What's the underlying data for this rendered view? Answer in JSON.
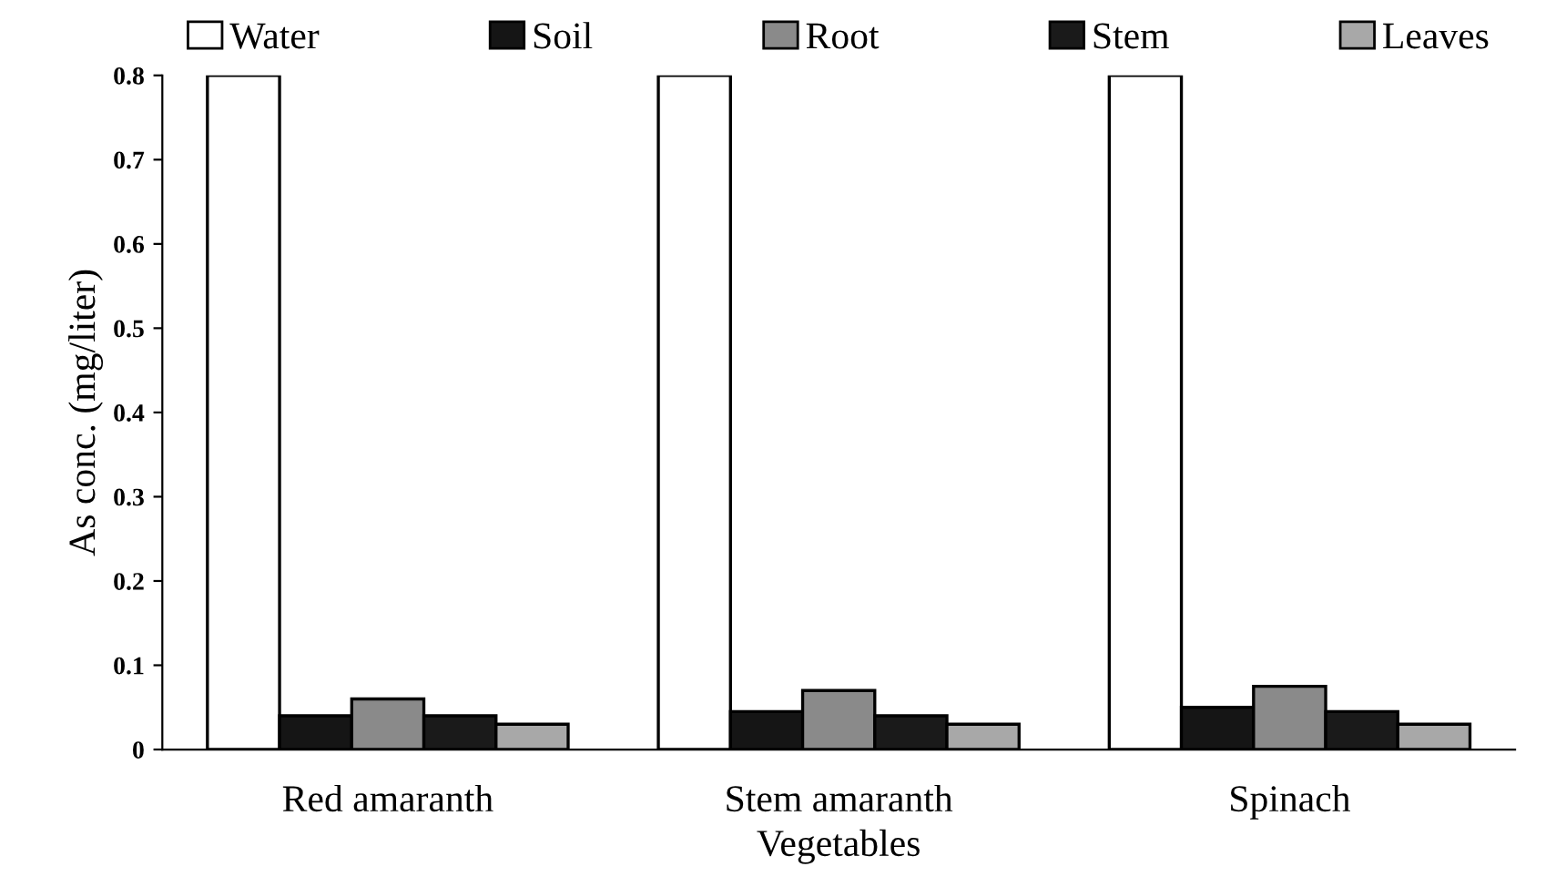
{
  "chart_data": {
    "type": "bar",
    "xlabel": "Vegetables",
    "ylabel": "As conc. (mg/liter)",
    "categories": [
      "Red amaranth",
      "Stem amaranth",
      "Spinach"
    ],
    "series": [
      {
        "name": "Water",
        "color": "#ffffff",
        "values": [
          0.8,
          0.8,
          0.8
        ]
      },
      {
        "name": "Soil",
        "color": "#151515",
        "values": [
          0.04,
          0.045,
          0.05
        ]
      },
      {
        "name": "Root",
        "color": "#8a8a8a",
        "values": [
          0.06,
          0.07,
          0.075
        ]
      },
      {
        "name": "Stem",
        "color": "#1a1a1a",
        "values": [
          0.04,
          0.04,
          0.045
        ]
      },
      {
        "name": "Leaves",
        "color": "#a8a8a8",
        "values": [
          0.03,
          0.03,
          0.03
        ]
      }
    ],
    "ylim": [
      0,
      0.8
    ],
    "yticks": [
      0,
      0.1,
      0.2,
      0.3,
      0.4,
      0.5,
      0.6,
      0.7,
      0.8
    ],
    "grid": false,
    "legend": "top"
  }
}
